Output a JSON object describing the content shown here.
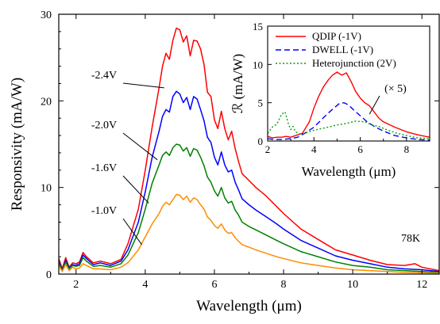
{
  "chart_data": [
    {
      "type": "line",
      "title": "",
      "xlabel": "Wavelength (μm)",
      "ylabel": "Responsivity (mA/W)",
      "xlim": [
        1.5,
        12.5
      ],
      "ylim": [
        0,
        30
      ],
      "xticks": [
        2,
        4,
        6,
        8,
        10,
        12
      ],
      "yticks": [
        0,
        10,
        20,
        30
      ],
      "temperature_label": "78K",
      "series": [
        {
          "name": "-2.4V",
          "color": "#ff0000",
          "x": [
            1.5,
            1.6,
            1.7,
            1.8,
            1.9,
            2.0,
            2.1,
            2.2,
            2.3,
            2.5,
            2.7,
            3.0,
            3.3,
            3.5,
            3.8,
            4.0,
            4.2,
            4.4,
            4.5,
            4.6,
            4.7,
            4.8,
            4.9,
            5.0,
            5.1,
            5.2,
            5.3,
            5.4,
            5.5,
            5.6,
            5.7,
            5.8,
            5.9,
            6.0,
            6.1,
            6.2,
            6.3,
            6.4,
            6.5,
            6.6,
            6.7,
            6.8,
            7.0,
            7.2,
            7.5,
            7.8,
            8.0,
            8.5,
            9.0,
            9.5,
            10.0,
            10.5,
            11.0,
            11.5,
            11.8,
            12.0,
            12.5
          ],
          "y": [
            1.8,
            0.6,
            1.9,
            0.8,
            1.3,
            1.2,
            1.4,
            2.5,
            2.0,
            1.3,
            1.5,
            1.2,
            1.7,
            3.5,
            7.5,
            12.0,
            17.0,
            21.5,
            24.0,
            25.5,
            24.8,
            27.0,
            28.4,
            28.2,
            26.8,
            27.5,
            25.2,
            27.0,
            26.9,
            26.0,
            24.2,
            21.0,
            20.5,
            17.8,
            16.8,
            18.8,
            16.8,
            15.5,
            16.5,
            14.5,
            13.0,
            11.6,
            10.8,
            10.0,
            9.0,
            7.8,
            7.0,
            5.2,
            4.0,
            2.8,
            2.2,
            1.6,
            1.1,
            1.0,
            1.2,
            0.8,
            0.4
          ]
        },
        {
          "name": "-2.0V",
          "color": "#0000ff",
          "x": [
            1.5,
            1.6,
            1.7,
            1.8,
            1.9,
            2.0,
            2.1,
            2.2,
            2.3,
            2.5,
            2.7,
            3.0,
            3.3,
            3.5,
            3.8,
            4.0,
            4.2,
            4.4,
            4.5,
            4.6,
            4.7,
            4.8,
            4.9,
            5.0,
            5.1,
            5.2,
            5.3,
            5.4,
            5.5,
            5.6,
            5.7,
            5.8,
            5.9,
            6.0,
            6.1,
            6.2,
            6.3,
            6.4,
            6.5,
            6.6,
            6.7,
            6.8,
            7.0,
            7.2,
            7.5,
            7.8,
            8.0,
            8.5,
            9.0,
            9.5,
            10.0,
            10.5,
            11.0,
            11.5,
            12.0,
            12.5
          ],
          "y": [
            1.5,
            0.5,
            1.6,
            0.7,
            1.1,
            1.0,
            1.2,
            2.2,
            1.8,
            1.1,
            1.3,
            1.0,
            1.5,
            2.8,
            6.0,
            9.5,
            13.5,
            16.5,
            18.2,
            19.0,
            18.7,
            20.5,
            21.1,
            20.8,
            19.8,
            20.4,
            19.0,
            20.5,
            20.2,
            19.0,
            17.7,
            15.8,
            15.2,
            13.5,
            12.6,
            14.1,
            12.6,
            11.8,
            12.0,
            10.6,
            9.7,
            8.7,
            8.0,
            7.4,
            6.6,
            5.8,
            5.2,
            3.9,
            3.0,
            2.1,
            1.6,
            1.2,
            0.8,
            0.6,
            0.5,
            0.3
          ]
        },
        {
          "name": "-1.6V",
          "color": "#008000",
          "x": [
            1.5,
            1.6,
            1.7,
            1.8,
            1.9,
            2.0,
            2.1,
            2.2,
            2.3,
            2.5,
            2.7,
            3.0,
            3.3,
            3.5,
            3.8,
            4.0,
            4.2,
            4.4,
            4.5,
            4.6,
            4.7,
            4.8,
            4.9,
            5.0,
            5.1,
            5.2,
            5.3,
            5.4,
            5.5,
            5.6,
            5.7,
            5.8,
            5.9,
            6.0,
            6.1,
            6.2,
            6.3,
            6.4,
            6.5,
            6.6,
            6.7,
            6.8,
            7.0,
            7.2,
            7.5,
            7.8,
            8.0,
            8.5,
            9.0,
            9.5,
            10.0,
            10.5,
            11.0,
            11.5,
            12.0,
            12.5
          ],
          "y": [
            1.3,
            0.4,
            1.4,
            0.6,
            1.0,
            0.9,
            1.0,
            1.9,
            1.5,
            0.9,
            1.0,
            0.8,
            1.2,
            2.2,
            4.8,
            7.5,
            10.5,
            12.6,
            13.7,
            14.1,
            13.7,
            14.6,
            15.0,
            14.9,
            14.2,
            14.6,
            13.6,
            14.5,
            14.3,
            13.5,
            12.5,
            11.2,
            10.6,
            9.6,
            9.0,
            10.0,
            8.8,
            8.2,
            8.4,
            7.4,
            6.8,
            6.0,
            5.5,
            5.1,
            4.5,
            3.9,
            3.5,
            2.6,
            2.0,
            1.4,
            1.0,
            0.8,
            0.5,
            0.4,
            0.3,
            0.2
          ]
        },
        {
          "name": "-1.0V",
          "color": "#ff8c00",
          "x": [
            1.5,
            1.6,
            1.7,
            1.8,
            1.9,
            2.0,
            2.1,
            2.2,
            2.3,
            2.5,
            2.7,
            3.0,
            3.3,
            3.5,
            3.8,
            4.0,
            4.2,
            4.4,
            4.5,
            4.6,
            4.7,
            4.8,
            4.9,
            5.0,
            5.1,
            5.2,
            5.3,
            5.4,
            5.5,
            5.6,
            5.7,
            5.8,
            5.9,
            6.0,
            6.1,
            6.2,
            6.3,
            6.4,
            6.5,
            6.6,
            6.7,
            6.8,
            7.0,
            7.2,
            7.5,
            7.8,
            8.0,
            8.5,
            9.0,
            9.5,
            10.0,
            10.5,
            11.0,
            11.5,
            12.0,
            12.5
          ],
          "y": [
            1.0,
            0.3,
            1.1,
            0.4,
            0.8,
            0.6,
            0.7,
            1.2,
            1.0,
            0.6,
            0.6,
            0.5,
            0.8,
            1.3,
            2.8,
            4.3,
            5.8,
            7.0,
            7.8,
            8.3,
            8.0,
            8.6,
            9.2,
            9.1,
            8.6,
            9.0,
            8.3,
            8.8,
            8.6,
            8.0,
            7.5,
            6.6,
            6.2,
            5.6,
            5.3,
            5.8,
            5.1,
            4.7,
            4.8,
            4.2,
            3.8,
            3.4,
            3.1,
            2.8,
            2.4,
            2.0,
            1.8,
            1.3,
            1.0,
            0.7,
            0.5,
            0.4,
            0.3,
            0.2,
            0.15,
            0.1
          ]
        }
      ],
      "annotations": [
        {
          "text": "-2.4V",
          "points_to_x": 4.55,
          "points_to_y": 21.5
        },
        {
          "text": "-2.0V",
          "points_to_x": 4.35,
          "points_to_y": 13.2
        },
        {
          "text": "-1.6V",
          "points_to_x": 4.1,
          "points_to_y": 8.2
        },
        {
          "text": "-1.0V",
          "points_to_x": 3.9,
          "points_to_y": 3.4
        }
      ]
    },
    {
      "type": "line",
      "title": "",
      "xlabel": "Wavelength (μm)",
      "ylabel": "ℛ (mA/W)",
      "xlim": [
        2,
        9
      ],
      "ylim": [
        0,
        15
      ],
      "xticks": [
        2,
        4,
        6,
        8
      ],
      "yticks": [
        0,
        5,
        10,
        15
      ],
      "legend_position": "top-right",
      "annotation": {
        "text": "(× 5)",
        "points_to_x": 6.4,
        "points_to_y": 3.5
      },
      "series": [
        {
          "name": "QDIP (-1V)",
          "color": "#ff0000",
          "style": "solid",
          "x": [
            2.0,
            2.2,
            2.4,
            2.6,
            2.8,
            3.0,
            3.2,
            3.5,
            3.8,
            4.0,
            4.2,
            4.4,
            4.6,
            4.8,
            5.0,
            5.2,
            5.4,
            5.6,
            5.8,
            6.0,
            6.2,
            6.4,
            6.6,
            6.8,
            7.0,
            7.5,
            8.0,
            8.5,
            9.0
          ],
          "y": [
            0.6,
            0.4,
            0.5,
            0.5,
            0.6,
            0.5,
            0.7,
            1.0,
            2.5,
            4.3,
            5.8,
            7.0,
            7.9,
            8.6,
            9.0,
            8.6,
            8.9,
            7.8,
            6.5,
            5.6,
            5.0,
            4.6,
            3.8,
            3.0,
            2.5,
            1.8,
            1.2,
            0.8,
            0.5
          ]
        },
        {
          "name": "DWELL (-1V)",
          "color": "#0000ff",
          "style": "dashed",
          "x": [
            2.0,
            2.3,
            2.6,
            3.0,
            3.3,
            3.6,
            4.0,
            4.3,
            4.6,
            4.9,
            5.1,
            5.3,
            5.5,
            5.7,
            6.0,
            6.3,
            6.6,
            7.0,
            7.5,
            8.0,
            8.5,
            9.0
          ],
          "y": [
            0.3,
            0.2,
            0.2,
            0.3,
            0.5,
            1.0,
            1.8,
            2.7,
            3.6,
            4.4,
            4.9,
            5.0,
            4.7,
            4.1,
            3.3,
            2.5,
            1.9,
            1.3,
            0.7,
            0.4,
            0.2,
            0.1
          ]
        },
        {
          "name": "Heterojunction (2V)",
          "color": "#00a000",
          "style": "dotted",
          "x": [
            2.0,
            2.2,
            2.4,
            2.6,
            2.75,
            2.9,
            3.0,
            3.1,
            3.2,
            3.4,
            3.6,
            3.8,
            4.0,
            4.3,
            4.6,
            5.0,
            5.4,
            5.8,
            6.2,
            6.5,
            6.8,
            7.2,
            7.6,
            8.0,
            8.5,
            9.0
          ],
          "y": [
            1.0,
            1.8,
            2.2,
            3.5,
            3.8,
            2.2,
            1.5,
            1.9,
            1.2,
            0.9,
            1.0,
            1.2,
            1.4,
            1.6,
            1.8,
            2.1,
            2.3,
            2.6,
            2.5,
            2.1,
            1.9,
            1.4,
            1.0,
            0.7,
            0.4,
            0.3
          ]
        }
      ]
    }
  ]
}
